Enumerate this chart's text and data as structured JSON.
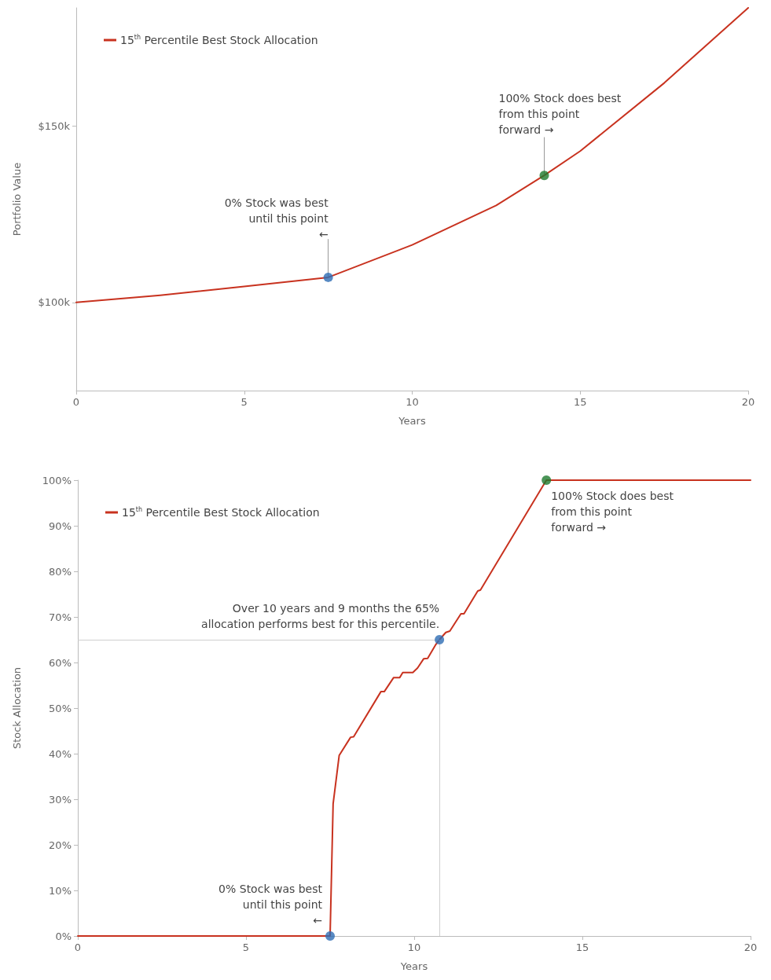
{
  "chart_data": [
    {
      "type": "line",
      "xlabel": "Years",
      "ylabel": "Portfolio Value",
      "xlim": [
        0,
        20
      ],
      "xticks": [
        0,
        5,
        10,
        15,
        20
      ],
      "ylim": [
        75000,
        183500
      ],
      "yticks": [
        {
          "value": 100000,
          "label": "$100k"
        },
        {
          "value": 150000,
          "label": "$150k"
        }
      ],
      "legend": "top left",
      "line_style": "solid",
      "series": [
        {
          "name": "15$^{th}$ Percentile Best Stock Allocation",
          "marker": "none",
          "color": "#c8321f",
          "x": [
            0,
            2.5,
            5,
            7.5,
            10,
            12.5,
            13.93,
            15,
            17.5,
            20
          ],
          "values": [
            100000,
            102000,
            104500,
            107100,
            116300,
            127500,
            136000,
            142900,
            162200,
            183500
          ]
        },
        {
          "type": "scatter",
          "marker": "circle",
          "color": "#2e6db4",
          "x": [
            7.5
          ],
          "values": [
            107100
          ]
        },
        {
          "type": "scatter",
          "marker": "circle",
          "color": "#1e7b2e",
          "x": [
            13.93
          ],
          "values": [
            136000
          ]
        }
      ],
      "annotations": [
        {
          "text": "0% Stock was best\nuntil this point\n←",
          "x": 7.5,
          "y": 107100
        },
        {
          "text": "100% Stock does best\nfrom this point\nforward →",
          "x": 13.93,
          "y": 136000
        }
      ]
    },
    {
      "type": "line",
      "xlabel": "Years",
      "ylabel": "Stock Allocation",
      "xlim": [
        0,
        20
      ],
      "xticks": [
        0,
        5,
        10,
        15,
        20
      ],
      "ylim": [
        0,
        100
      ],
      "yticks": [
        {
          "value": 0,
          "label": "0%"
        },
        {
          "value": 10,
          "label": "10%"
        },
        {
          "value": 20,
          "label": "20%"
        },
        {
          "value": 30,
          "label": "30%"
        },
        {
          "value": 40,
          "label": "40%"
        },
        {
          "value": 50,
          "label": "50%"
        },
        {
          "value": 60,
          "label": "60%"
        },
        {
          "value": 70,
          "label": "70%"
        },
        {
          "value": 80,
          "label": "80%"
        },
        {
          "value": 90,
          "label": "90%"
        },
        {
          "value": 100,
          "label": "100%"
        }
      ],
      "legend": "top left",
      "line_style": "solid",
      "series": [
        {
          "name": "15$^{th}$ Percentile Best Stock Allocation",
          "marker": "none",
          "color": "#c8321f",
          "x": [
            0,
            7.5,
            7.59,
            7.77,
            8.11,
            8.2,
            9.01,
            9.11,
            9.39,
            9.57,
            9.66,
            9.96,
            10.1,
            10.28,
            10.4,
            10.63,
            10.75,
            10.94,
            11.06,
            11.39,
            11.48,
            11.89,
            11.97,
            13.93,
            20
          ],
          "values": [
            0,
            0,
            29,
            39.6,
            43.6,
            43.7,
            53.6,
            53.6,
            56.7,
            56.7,
            57.8,
            57.8,
            58.8,
            60.8,
            60.9,
            63.8,
            65,
            66.6,
            66.9,
            70.7,
            70.7,
            75.7,
            75.9,
            100,
            100
          ]
        },
        {
          "type": "scatter",
          "marker": "circle",
          "color": "#2e6db4",
          "x": [
            7.5
          ],
          "values": [
            0
          ]
        },
        {
          "type": "scatter",
          "marker": "circle",
          "color": "#2e6db4",
          "x": [
            10.75
          ],
          "values": [
            65
          ]
        },
        {
          "type": "scatter",
          "marker": "circle",
          "color": "#1e7b2e",
          "x": [
            13.93
          ],
          "values": [
            100
          ]
        }
      ],
      "ref_lines": [
        {
          "axis": "y",
          "value": 65,
          "color": "#d0d0d0"
        },
        {
          "axis": "x",
          "value": 10.75,
          "color": "#d0d0d0"
        }
      ],
      "annotations": [
        {
          "text": "0% Stock was best\nuntil this point\n←",
          "x": 7.5,
          "y": 0
        },
        {
          "text": "Over 10 years and 9 months the 65%\nallocation performs best for this percentile.",
          "x": 10.75,
          "y": 65
        },
        {
          "text": "100% Stock does best\nfrom this point\nforward →",
          "x": 13.93,
          "y": 100
        }
      ]
    }
  ]
}
